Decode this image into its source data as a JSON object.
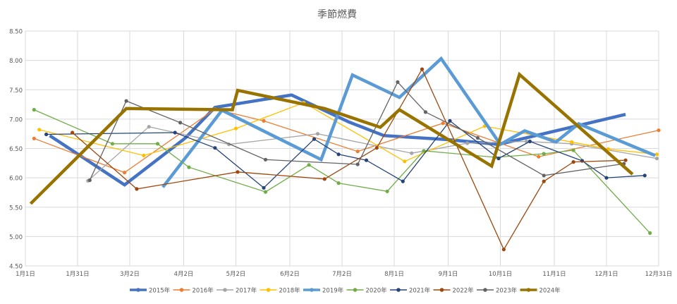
{
  "chart_data": {
    "type": "line",
    "title": "季節燃費",
    "xlabel": "",
    "ylabel": "",
    "ylim": [
      4.5,
      8.5
    ],
    "y_ticks": [
      "4.50",
      "5.00",
      "5.50",
      "6.00",
      "6.50",
      "7.00",
      "7.50",
      "8.00",
      "8.50"
    ],
    "x_range": [
      "01-01",
      "12-31"
    ],
    "x_ticks": [
      {
        "label": "1月1日",
        "date": "01-01"
      },
      {
        "label": "1月31日",
        "date": "01-31"
      },
      {
        "label": "3月2日",
        "date": "03-02"
      },
      {
        "label": "4月2日",
        "date": "04-02"
      },
      {
        "label": "5月2日",
        "date": "05-02"
      },
      {
        "label": "6月2日",
        "date": "06-02"
      },
      {
        "label": "7月2日",
        "date": "07-02"
      },
      {
        "label": "8月1日",
        "date": "08-01"
      },
      {
        "label": "9月1日",
        "date": "09-01"
      },
      {
        "label": "10月1日",
        "date": "10-01"
      },
      {
        "label": "11月1日",
        "date": "11-01"
      },
      {
        "label": "12月1日",
        "date": "12-01"
      },
      {
        "label": "12月31日",
        "date": "12-31"
      }
    ],
    "grid": true,
    "legend_position": "bottom",
    "series": [
      {
        "name": "2015年",
        "color": "#4472C4",
        "heavy": true,
        "markers": false,
        "points": [
          [
            "01-15",
            6.72
          ],
          [
            "02-27",
            5.88
          ],
          [
            "04-03",
            6.68
          ],
          [
            "04-20",
            7.2
          ],
          [
            "06-03",
            7.41
          ],
          [
            "07-06",
            6.95
          ],
          [
            "07-26",
            6.72
          ],
          [
            "09-01",
            6.65
          ],
          [
            "09-30",
            6.57
          ],
          [
            "12-12",
            7.08
          ]
        ]
      },
      {
        "name": "2016年",
        "color": "#ED7D31",
        "heavy": false,
        "markers": true,
        "points": [
          [
            "01-06",
            6.67
          ],
          [
            "02-27",
            6.09
          ],
          [
            "04-20",
            7.17
          ],
          [
            "05-18",
            6.97
          ],
          [
            "07-11",
            6.45
          ],
          [
            "08-29",
            6.93
          ],
          [
            "10-23",
            6.36
          ],
          [
            "12-31",
            6.81
          ]
        ]
      },
      {
        "name": "2017年",
        "color": "#A5A5A5",
        "heavy": false,
        "markers": true,
        "points": [
          [
            "02-06",
            5.95
          ],
          [
            "03-13",
            6.87
          ],
          [
            "04-28",
            6.57
          ],
          [
            "06-18",
            6.75
          ],
          [
            "08-11",
            6.42
          ],
          [
            "09-12",
            6.59
          ],
          [
            "10-16",
            6.62
          ],
          [
            "11-11",
            6.58
          ],
          [
            "12-30",
            6.33
          ]
        ]
      },
      {
        "name": "2018年",
        "color": "#FFC000",
        "heavy": false,
        "markers": true,
        "points": [
          [
            "01-09",
            6.82
          ],
          [
            "03-10",
            6.38
          ],
          [
            "05-02",
            6.84
          ],
          [
            "06-10",
            7.28
          ],
          [
            "08-07",
            6.28
          ],
          [
            "09-22",
            6.88
          ],
          [
            "11-11",
            6.61
          ],
          [
            "12-02",
            6.49
          ],
          [
            "12-30",
            6.4
          ]
        ]
      },
      {
        "name": "2019年",
        "color": "#5B9BD5",
        "heavy": true,
        "markers": false,
        "points": [
          [
            "03-21",
            5.84
          ],
          [
            "04-24",
            7.15
          ],
          [
            "06-20",
            6.31
          ],
          [
            "07-08",
            7.75
          ],
          [
            "08-04",
            7.37
          ],
          [
            "08-28",
            8.03
          ],
          [
            "10-01",
            6.57
          ],
          [
            "10-15",
            6.8
          ],
          [
            "11-02",
            6.61
          ],
          [
            "11-15",
            6.92
          ],
          [
            "12-29",
            6.38
          ]
        ]
      },
      {
        "name": "2020年",
        "color": "#70AD47",
        "heavy": false,
        "markers": true,
        "points": [
          [
            "01-06",
            7.16
          ],
          [
            "02-20",
            6.58
          ],
          [
            "03-18",
            6.58
          ],
          [
            "04-05",
            6.18
          ],
          [
            "05-19",
            5.76
          ],
          [
            "06-13",
            6.22
          ],
          [
            "06-30",
            5.91
          ],
          [
            "07-28",
            5.77
          ],
          [
            "08-18",
            6.46
          ],
          [
            "09-28",
            6.35
          ],
          [
            "10-26",
            6.41
          ],
          [
            "11-12",
            6.47
          ],
          [
            "12-26",
            5.06
          ]
        ]
      },
      {
        "name": "2021年",
        "color": "#264478",
        "heavy": false,
        "markers": true,
        "points": [
          [
            "01-13",
            6.74
          ],
          [
            "03-28",
            6.77
          ],
          [
            "04-20",
            6.51
          ],
          [
            "05-18",
            5.83
          ],
          [
            "06-16",
            6.66
          ],
          [
            "06-30",
            6.4
          ],
          [
            "07-16",
            6.3
          ],
          [
            "08-06",
            5.94
          ],
          [
            "09-02",
            6.97
          ],
          [
            "09-30",
            6.33
          ],
          [
            "10-18",
            6.62
          ],
          [
            "11-17",
            6.29
          ],
          [
            "12-01",
            6.0
          ],
          [
            "12-23",
            6.04
          ]
        ]
      },
      {
        "name": "2022年",
        "color": "#9E480E",
        "heavy": false,
        "markers": true,
        "points": [
          [
            "01-28",
            6.77
          ],
          [
            "03-06",
            5.81
          ],
          [
            "05-03",
            6.1
          ],
          [
            "06-22",
            5.98
          ],
          [
            "07-22",
            6.51
          ],
          [
            "08-17",
            7.85
          ],
          [
            "10-03",
            4.78
          ],
          [
            "10-26",
            5.94
          ],
          [
            "11-12",
            6.27
          ],
          [
            "12-12",
            6.3
          ]
        ]
      },
      {
        "name": "2023年",
        "color": "#636363",
        "heavy": false,
        "markers": true,
        "points": [
          [
            "02-07",
            5.96
          ],
          [
            "02-28",
            7.31
          ],
          [
            "03-31",
            6.94
          ],
          [
            "05-19",
            6.31
          ],
          [
            "07-11",
            6.23
          ],
          [
            "08-03",
            7.63
          ],
          [
            "08-19",
            7.12
          ],
          [
            "09-18",
            6.68
          ],
          [
            "10-26",
            6.04
          ],
          [
            "12-11",
            6.24
          ]
        ]
      },
      {
        "name": "2024年",
        "color": "#997300",
        "heavy": true,
        "markers": false,
        "points": [
          [
            "01-04",
            5.56
          ],
          [
            "02-28",
            7.18
          ],
          [
            "04-30",
            7.16
          ],
          [
            "05-03",
            7.49
          ],
          [
            "06-22",
            7.18
          ],
          [
            "07-24",
            6.86
          ],
          [
            "08-04",
            7.16
          ],
          [
            "09-26",
            6.2
          ],
          [
            "10-12",
            7.76
          ],
          [
            "12-16",
            6.06
          ]
        ]
      }
    ]
  }
}
